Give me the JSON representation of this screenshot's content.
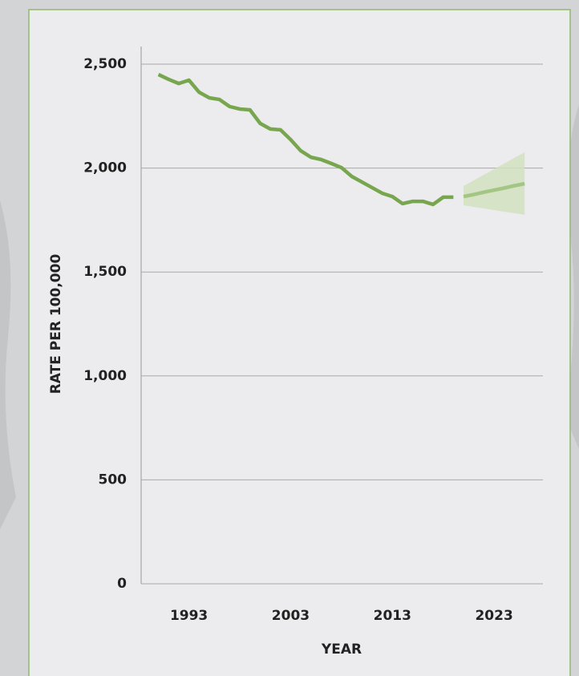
{
  "chart_data": {
    "type": "line",
    "x_label": "YEAR",
    "y_label": "RATE PER 100,000",
    "xlim": [
      1988.3,
      2027.8
    ],
    "xticks": [
      1993,
      2003,
      2013,
      2023
    ],
    "ylim": [
      0,
      2500
    ],
    "yticks": [
      0,
      500,
      {
        "value": 1000,
        "label": "1,000"
      },
      {
        "value": 1500,
        "label": "1,500"
      },
      {
        "value": 2000,
        "label": "2,000"
      },
      {
        "value": 2500,
        "label": "2,500"
      }
    ],
    "grid": true,
    "series": [
      {
        "color": "#78a64e",
        "x": [
          1990,
          1991,
          1992,
          1993,
          1994,
          1995,
          1996,
          1997,
          1998,
          1999,
          2000,
          2001,
          2002,
          2003,
          2004,
          2005,
          2006,
          2007,
          2008,
          2009,
          2010,
          2011,
          2012,
          2013,
          2014,
          2015,
          2016,
          2017,
          2018,
          2019
        ],
        "values": [
          2450,
          2427,
          2407,
          2423,
          2365,
          2338,
          2330,
          2296,
          2284,
          2280,
          2215,
          2188,
          2184,
          2137,
          2083,
          2052,
          2041,
          2022,
          2002,
          1960,
          1933,
          1906,
          1879,
          1863,
          1829,
          1840,
          1840,
          1825,
          1860,
          1860
        ]
      },
      {
        "color": "#a3c684",
        "x": [
          2020,
          2021,
          2022,
          2023,
          2024,
          2025,
          2026
        ],
        "values": [
          1863,
          1873,
          1884,
          1894,
          1904,
          1915,
          1925
        ]
      }
    ],
    "band": {
      "color": "#d2e2bf",
      "x": [
        2020,
        2021,
        2022,
        2023,
        2024,
        2025,
        2026
      ],
      "lower": [
        1821,
        1813,
        1806,
        1798,
        1790,
        1783,
        1775
      ],
      "upper": [
        1914,
        1941,
        1968,
        1995,
        2022,
        2049,
        2076
      ]
    }
  }
}
